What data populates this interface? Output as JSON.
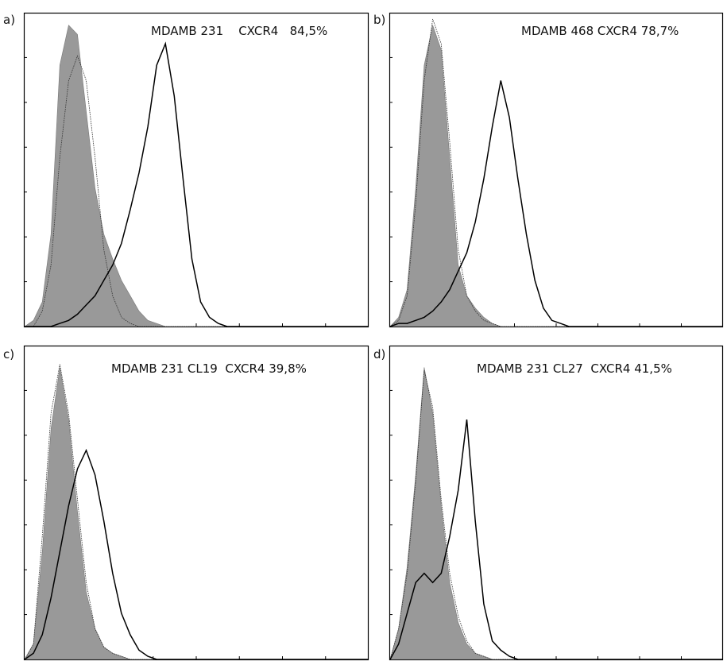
{
  "chart_data": [
    {
      "type": "area",
      "panel": "a)",
      "title": "MDAMB 231    CXCR4   84,5%",
      "series": [
        {
          "values": [
            0,
            2,
            8,
            30,
            85,
            98,
            95,
            70,
            45,
            30,
            22,
            15,
            10,
            5,
            2,
            1,
            0,
            0,
            0,
            0,
            0,
            0,
            0,
            0,
            0,
            0,
            0,
            0,
            0,
            0,
            0,
            0,
            0,
            0,
            0,
            0,
            0,
            0,
            0,
            0
          ]
        },
        {
          "values": [
            0,
            0,
            5,
            20,
            55,
            80,
            88,
            80,
            55,
            25,
            10,
            3,
            1,
            0,
            0,
            0,
            0,
            0,
            0,
            0,
            0,
            0,
            0,
            0,
            0,
            0,
            0,
            0,
            0,
            0,
            0,
            0,
            0,
            0,
            0,
            0,
            0,
            0,
            0,
            0
          ]
        },
        {
          "values": [
            0,
            0,
            0,
            0,
            1,
            2,
            4,
            7,
            10,
            15,
            20,
            27,
            38,
            50,
            65,
            85,
            92,
            75,
            48,
            22,
            8,
            3,
            1,
            0,
            0,
            0,
            0,
            0,
            0,
            0,
            0,
            0,
            0,
            0,
            0,
            0,
            0,
            0,
            0,
            0
          ]
        }
      ],
      "ylim": [
        0,
        100
      ]
    },
    {
      "type": "area",
      "panel": "b)",
      "title": "MDAMB 468 CXCR4 78,7%",
      "series": [
        {
          "values": [
            0,
            3,
            12,
            45,
            85,
            98,
            90,
            55,
            20,
            10,
            6,
            3,
            1,
            0,
            0,
            0,
            0,
            0,
            0,
            0,
            0,
            0,
            0,
            0,
            0,
            0,
            0,
            0,
            0,
            0,
            0,
            0,
            0,
            0,
            0,
            0,
            0,
            0,
            0,
            0
          ]
        },
        {
          "values": [
            0,
            2,
            10,
            40,
            80,
            100,
            92,
            60,
            25,
            10,
            5,
            2,
            1,
            0,
            0,
            0,
            0,
            0,
            0,
            0,
            0,
            0,
            0,
            0,
            0,
            0,
            0,
            0,
            0,
            0,
            0,
            0,
            0,
            0,
            0,
            0,
            0,
            0,
            0,
            0
          ]
        },
        {
          "values": [
            0,
            1,
            1,
            2,
            3,
            5,
            8,
            12,
            18,
            24,
            34,
            48,
            65,
            80,
            68,
            48,
            30,
            15,
            6,
            2,
            1,
            0,
            0,
            0,
            0,
            0,
            0,
            0,
            0,
            0,
            0,
            0,
            0,
            0,
            0,
            0,
            0,
            0,
            0,
            0
          ]
        }
      ],
      "ylim": [
        0,
        100
      ]
    },
    {
      "type": "area",
      "panel": "c)",
      "title": "MDAMB 231 CL19  CXCR4 39,8%",
      "series": [
        {
          "values": [
            0,
            5,
            35,
            75,
            95,
            78,
            48,
            22,
            10,
            4,
            2,
            1,
            0,
            0,
            0,
            0,
            0,
            0,
            0,
            0,
            0,
            0,
            0,
            0,
            0,
            0,
            0,
            0,
            0,
            0,
            0,
            0,
            0,
            0,
            0,
            0,
            0,
            0,
            0,
            0
          ]
        },
        {
          "values": [
            0,
            5,
            40,
            80,
            96,
            80,
            52,
            25,
            10,
            4,
            2,
            1,
            0,
            0,
            0,
            0,
            0,
            0,
            0,
            0,
            0,
            0,
            0,
            0,
            0,
            0,
            0,
            0,
            0,
            0,
            0,
            0,
            0,
            0,
            0,
            0,
            0,
            0,
            0,
            0
          ]
        },
        {
          "values": [
            0,
            2,
            8,
            20,
            35,
            50,
            62,
            68,
            60,
            45,
            28,
            15,
            8,
            3,
            1,
            0,
            0,
            0,
            0,
            0,
            0,
            0,
            0,
            0,
            0,
            0,
            0,
            0,
            0,
            0,
            0,
            0,
            0,
            0,
            0,
            0,
            0,
            0,
            0,
            0
          ]
        }
      ],
      "ylim": [
        0,
        100
      ]
    },
    {
      "type": "area",
      "panel": "d)",
      "title": "MDAMB 231 CL27  CXCR4 41,5%",
      "series": [
        {
          "values": [
            0,
            10,
            30,
            60,
            95,
            80,
            50,
            25,
            12,
            5,
            2,
            1,
            0,
            0,
            0,
            0,
            0,
            0,
            0,
            0,
            0,
            0,
            0,
            0,
            0,
            0,
            0,
            0,
            0,
            0,
            0,
            0,
            0,
            0,
            0,
            0,
            0,
            0,
            0,
            0
          ]
        },
        {
          "values": [
            0,
            10,
            28,
            58,
            94,
            82,
            52,
            28,
            14,
            6,
            2,
            1,
            0,
            0,
            0,
            0,
            0,
            0,
            0,
            0,
            0,
            0,
            0,
            0,
            0,
            0,
            0,
            0,
            0,
            0,
            0,
            0,
            0,
            0,
            0,
            0,
            0,
            0,
            0,
            0
          ]
        },
        {
          "values": [
            0,
            5,
            15,
            25,
            28,
            25,
            28,
            40,
            55,
            78,
            45,
            18,
            6,
            3,
            1,
            0,
            0,
            0,
            0,
            0,
            0,
            0,
            0,
            0,
            0,
            0,
            0,
            0,
            0,
            0,
            0,
            0,
            0,
            0,
            0,
            0,
            0,
            0,
            0,
            0
          ]
        }
      ],
      "ylim": [
        0,
        100
      ]
    }
  ],
  "colors": {
    "isotype_fill": "#999999",
    "control_line": "#333333",
    "marker_line": "#000000"
  }
}
